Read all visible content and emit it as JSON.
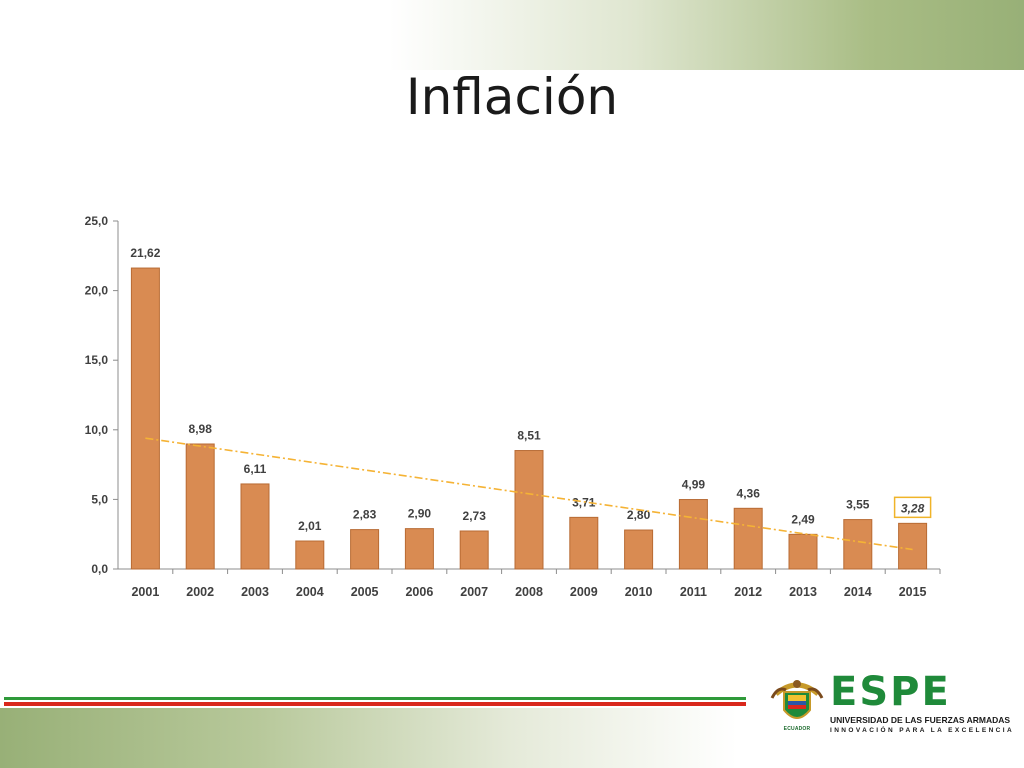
{
  "slide": {
    "title": "Inflación"
  },
  "logo": {
    "name": "ESPE",
    "subtitle": "UNIVERSIDAD DE LAS FUERZAS ARMADAS",
    "motto": "INNOVACIÓN PARA LA EXCELENCIA",
    "seal_caption": "ECUADOR"
  },
  "colors": {
    "bar": "#d98b52",
    "bar_stroke": "#b86b34",
    "trend": "#f5b335",
    "highlight_box": "#f0b429",
    "logo_green": "#1f8a3a"
  },
  "chart_data": {
    "type": "bar",
    "categories": [
      "2001",
      "2002",
      "2003",
      "2004",
      "2005",
      "2006",
      "2007",
      "2008",
      "2009",
      "2010",
      "2011",
      "2012",
      "2013",
      "2014",
      "2015"
    ],
    "values": [
      21.62,
      8.98,
      6.11,
      2.01,
      2.83,
      2.9,
      2.73,
      8.51,
      3.71,
      2.8,
      4.99,
      4.36,
      2.49,
      3.55,
      3.28
    ],
    "data_labels": [
      "21,62",
      "8,98",
      "6,11",
      "2,01",
      "2,83",
      "2,90",
      "2,73",
      "8,51",
      "3,71",
      "2,80",
      "4,99",
      "4,36",
      "2,49",
      "3,55",
      "3,28"
    ],
    "highlighted_index": 14,
    "yticks": [
      0,
      5,
      10,
      15,
      20,
      25
    ],
    "ytick_labels": [
      "0,0",
      "5,0",
      "10,0",
      "15,0",
      "20,0",
      "25,0"
    ],
    "ylim": [
      0,
      25
    ],
    "trendline": {
      "type": "linear",
      "style": "dash-dot",
      "start": 9.4,
      "end": 1.4
    },
    "title": "",
    "xlabel": "",
    "ylabel": "",
    "grid": false,
    "legend": "none"
  }
}
